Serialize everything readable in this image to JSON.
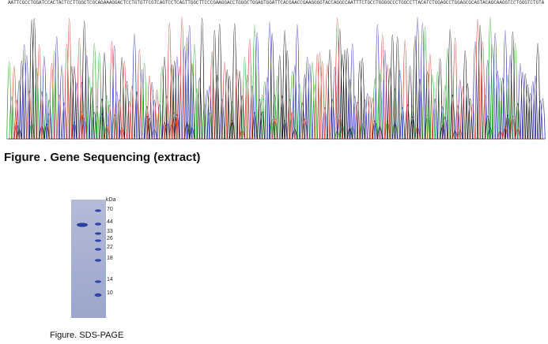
{
  "sequence": {
    "text": "AATTCGCCTGGATCCACTACTCCTTGGCTCGCAGAAAGGACTCCTGTGTTCGTCAGTCCTCAGTTGGCTTCCCGAAGGACCTGGGCTGGAGTGGATTCACGAACCGAAGGGGTACCAGGCCAATTTCTGCCTGGGGCCCTGGCCTTACATCTGGAGCCTGGAGCGCAGTACAGCAAGGTCCTGGGTCTGTACAACCAGCACGAGCCGGGCCGCC",
    "traces": {
      "A": "#1faa1f",
      "C": "#2d2db5",
      "G": "#111111",
      "T": "#d43a2a"
    }
  },
  "figure1": {
    "caption": "Figure . Gene Sequencing (extract)"
  },
  "figure2": {
    "caption": "Figure. SDS-PAGE",
    "unit": "kDa",
    "markers": [
      "70",
      "44",
      "33",
      "26",
      "22",
      "18",
      "14",
      "10"
    ]
  }
}
